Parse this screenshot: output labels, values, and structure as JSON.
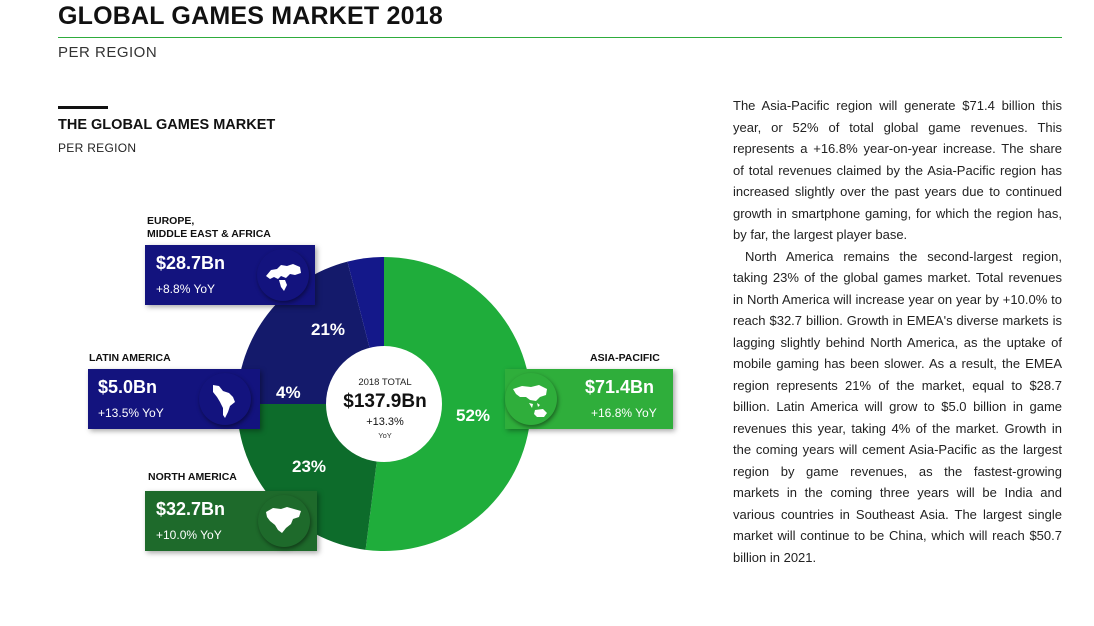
{
  "header": {
    "title": "GLOBAL GAMES MARKET 2018",
    "subtitle": "PER REGION"
  },
  "section": {
    "title": "THE GLOBAL GAMES MARKET",
    "subtitle": "PER REGION"
  },
  "colors": {
    "accent_green": "#2eac3c",
    "asia_pacific": "#1fad3b",
    "north_america": "#0d6c2b",
    "europe_mea": "#141a6b",
    "latin_america": "#14188a",
    "callout_blue": "#13137e",
    "callout_green": "#1e6a2b",
    "callout_asia": "#2fae3b"
  },
  "center": {
    "label": "2018 TOTAL",
    "value": "$137.9Bn",
    "growth": "+13.3%",
    "growth_unit": "YoY"
  },
  "regions": [
    {
      "name": "EUROPE,\nMIDDLE EAST & AFRICA",
      "value": "$28.7Bn",
      "yoy": "+8.8% YoY",
      "share": "21%",
      "icon": "europe-map-icon"
    },
    {
      "name": "LATIN AMERICA",
      "value": "$5.0Bn",
      "yoy": "+13.5% YoY",
      "share": "4%",
      "icon": "south-america-map-icon"
    },
    {
      "name": "NORTH AMERICA",
      "value": "$32.7Bn",
      "yoy": "+10.0% YoY",
      "share": "23%",
      "icon": "north-america-map-icon"
    },
    {
      "name": "ASIA-PACIFIC",
      "value": "$71.4Bn",
      "yoy": "+16.8% YoY",
      "share": "52%",
      "icon": "asia-pacific-map-icon"
    }
  ],
  "chart_data": {
    "type": "pie",
    "categories": [
      "Asia-Pacific",
      "North America",
      "Europe, Middle East & Africa",
      "Latin America"
    ],
    "values": [
      52,
      23,
      21,
      4
    ],
    "revenues_bn": [
      71.4,
      32.7,
      28.7,
      5.0
    ],
    "title": "THE GLOBAL GAMES MARKET",
    "subtitle": "PER REGION",
    "donut": true,
    "total": "$137.9Bn",
    "colors": [
      "#1fad3b",
      "#0d6c2b",
      "#141a6b",
      "#14188a"
    ]
  },
  "body": {
    "paragraphs": [
      "The Asia-Pacific region will generate $71.4 billion this year, or 52% of total global game revenues. This represents a +16.8% year-on-year increase. The share of total revenues claimed by the Asia-Pacific region has increased slightly over the past years due to continued growth in smartphone gaming, for which the region has, by far, the largest player base.",
      "North America remains the second-largest region, taking 23% of the global games market. Total revenues in North America will increase year on year by +10.0% to reach $32.7 billion. Growth in EMEA's diverse markets is lagging slightly behind North America, as the uptake of mobile gaming has been slower. As a result, the EMEA region represents 21% of the market, equal to $28.7 billion. Latin America will grow to $5.0 billion in game revenues this year, taking 4% of the market. Growth in the coming years will cement Asia-Pacific as the largest region by game revenues, as the fastest-growing markets in the coming three years will be India and various countries in Southeast Asia. The largest single market will continue to be China, which will reach $50.7 billion in 2021."
    ]
  }
}
